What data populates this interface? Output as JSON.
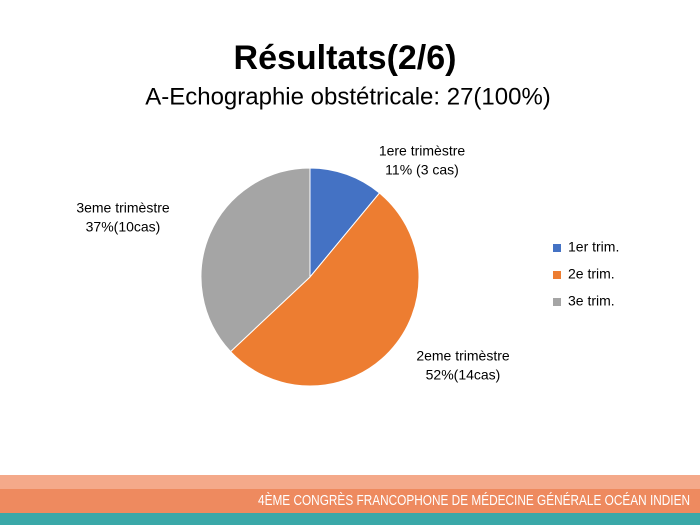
{
  "chart_data": {
    "type": "pie",
    "title": "Résultats(2/6)",
    "subtitle": "A-Echographie obstétricale: 27(100%)",
    "categories": [
      "1er trim.",
      "2e trim.",
      "3e trim."
    ],
    "values": [
      11,
      52,
      37
    ],
    "colors": [
      "#4472c4",
      "#ed7d31",
      "#a5a5a5"
    ],
    "label_names": [
      "1ere trimèstre",
      "2eme trimèstre",
      "3eme trimèstre"
    ],
    "value_labels": [
      "11% (3 cas)",
      "52%(14cas)",
      "37%(10cas)"
    ],
    "legend": "right"
  },
  "footer": "4ÈME CONGRÈS FRANCOPHONE DE MÉDECINE GÉNÉRALE OCÉAN INDIEN"
}
